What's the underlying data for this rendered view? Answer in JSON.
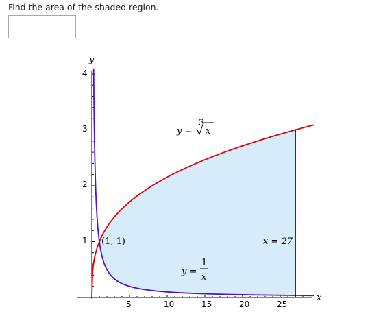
{
  "question": {
    "text": "Find the area of the shaded region."
  },
  "answer": {
    "value": "",
    "placeholder": ""
  },
  "colors": {
    "red_curve": "#e00000",
    "blue_curve": "#4a10e0",
    "shade": "#d6ecfb",
    "boundary": "#000000"
  },
  "chart_data": {
    "type": "area",
    "title": "",
    "xlabel": "x",
    "ylabel": "y",
    "xlim": [
      0,
      28
    ],
    "ylim": [
      0,
      4
    ],
    "x_ticks": [
      5,
      10,
      15,
      20,
      25
    ],
    "y_ticks": [
      1,
      2,
      3,
      4
    ],
    "series": [
      {
        "name": "y = ∛x",
        "equation": "y = x^(1/3)",
        "x": [
          0,
          1,
          8,
          27
        ],
        "y": [
          0,
          1,
          2,
          3
        ]
      },
      {
        "name": "y = 1/x",
        "equation": "y = 1/x",
        "x": [
          0.25,
          1,
          5,
          27
        ],
        "y": [
          4,
          1,
          0.2,
          0.037
        ]
      }
    ],
    "region": {
      "between": [
        "y = ∛x",
        "y = 1/x"
      ],
      "x_from": 1,
      "x_to": 27
    },
    "annotations": [
      {
        "label": "(1, 1)",
        "x": 1,
        "y": 1
      },
      {
        "label": "x = 27",
        "x": 27
      }
    ]
  },
  "labels": {
    "y_axis": "y",
    "x_axis": "x",
    "y_tick_1": "1",
    "y_tick_2": "2",
    "y_tick_3": "3",
    "y_tick_4": "4",
    "x_tick_5": "5",
    "x_tick_10": "10",
    "x_tick_15": "15",
    "x_tick_20": "20",
    "x_tick_25": "25",
    "point": "(1, 1)",
    "vertical_line": "x = 27",
    "cube_root_lhs": "y =",
    "cube_root_index": "3",
    "cube_root_radicand": "x",
    "reciprocal_lhs": "y =",
    "reciprocal_num": "1",
    "reciprocal_den": "x"
  }
}
